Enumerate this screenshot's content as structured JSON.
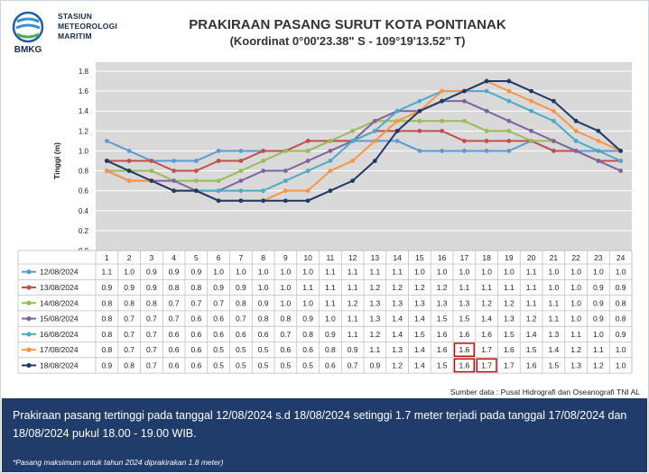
{
  "header": {
    "org_lines": [
      "STASIUN",
      "METEOROLOGI",
      "MARITIM"
    ],
    "logo_text": "BMKG",
    "title": "PRAKIRAAN PASANG SURUT KOTA PONTIANAK",
    "subtitle": "(Koordinat 0°00'23.38\" S - 109°19'13.52\" T)"
  },
  "source": "Sumber data : Pusat Hidrografi dan Oseanografi TNI AL",
  "footer": {
    "text": "Prakiraan pasang tertinggi pada tanggal 12/08/2024 s.d 18/08/2024 setinggi 1.7 meter terjadi pada tanggal 17/08/2024 dan 18/08/2024 pukul 18.00 - 19.00 WIB.",
    "note": "*Pasang maksimum untuk tahun 2024 diprakirakan 1.8 meter)"
  },
  "colors": {
    "footer_bg": "#1f3c6b",
    "plot_bg": "#d9d9d9",
    "highlight_box": "#c00000"
  },
  "chart_data": {
    "type": "line",
    "ylabel": "Tinggi (m)",
    "xlabel": "",
    "ylim": [
      0,
      1.8
    ],
    "yticks": [
      "0.0",
      "0.2",
      "0.4",
      "0.6",
      "0.8",
      "1.0",
      "1.2",
      "1.4",
      "1.6",
      "1.8"
    ],
    "categories": [
      "1",
      "2",
      "3",
      "4",
      "5",
      "6",
      "7",
      "8",
      "9",
      "10",
      "11",
      "12",
      "13",
      "14",
      "15",
      "16",
      "17",
      "18",
      "19",
      "20",
      "21",
      "22",
      "23",
      "24"
    ],
    "grid": true,
    "legend_position": "data-table",
    "series": [
      {
        "name": "12/08/2024",
        "color": "#5b9bd5",
        "values": [
          1.1,
          1.0,
          0.9,
          0.9,
          0.9,
          1.0,
          1.0,
          1.0,
          1.0,
          1.0,
          1.1,
          1.1,
          1.1,
          1.1,
          1.0,
          1.0,
          1.0,
          1.0,
          1.0,
          1.1,
          1.0,
          1.0,
          1.0,
          1.0
        ],
        "highlight": []
      },
      {
        "name": "13/08/2024",
        "color": "#c0504d",
        "values": [
          0.9,
          0.9,
          0.9,
          0.8,
          0.8,
          0.9,
          0.9,
          1.0,
          1.0,
          1.1,
          1.1,
          1.1,
          1.2,
          1.2,
          1.2,
          1.2,
          1.1,
          1.1,
          1.1,
          1.1,
          1.0,
          1.0,
          0.9,
          0.9
        ],
        "highlight": []
      },
      {
        "name": "14/08/2024",
        "color": "#9bbb59",
        "values": [
          0.8,
          0.8,
          0.8,
          0.7,
          0.7,
          0.7,
          0.8,
          0.9,
          1.0,
          1.0,
          1.1,
          1.2,
          1.3,
          1.3,
          1.3,
          1.3,
          1.3,
          1.2,
          1.2,
          1.1,
          1.1,
          1.0,
          0.9,
          0.8
        ],
        "highlight": []
      },
      {
        "name": "15/08/2024",
        "color": "#8064a2",
        "values": [
          0.8,
          0.7,
          0.7,
          0.7,
          0.6,
          0.6,
          0.7,
          0.8,
          0.8,
          0.9,
          1.0,
          1.1,
          1.3,
          1.4,
          1.4,
          1.5,
          1.5,
          1.4,
          1.3,
          1.2,
          1.1,
          1.0,
          0.9,
          0.8
        ],
        "highlight": []
      },
      {
        "name": "16/08/2024",
        "color": "#4bacc6",
        "values": [
          0.8,
          0.7,
          0.7,
          0.6,
          0.6,
          0.6,
          0.6,
          0.6,
          0.7,
          0.8,
          0.9,
          1.1,
          1.2,
          1.4,
          1.5,
          1.6,
          1.6,
          1.6,
          1.5,
          1.4,
          1.3,
          1.1,
          1.0,
          0.9
        ],
        "highlight": []
      },
      {
        "name": "17/08/2024",
        "color": "#f79646",
        "values": [
          0.8,
          0.7,
          0.7,
          0.6,
          0.6,
          0.5,
          0.5,
          0.5,
          0.6,
          0.6,
          0.8,
          0.9,
          1.1,
          1.3,
          1.4,
          1.6,
          1.6,
          1.7,
          1.6,
          1.5,
          1.4,
          1.2,
          1.1,
          1.0
        ],
        "highlight": [
          17
        ]
      },
      {
        "name": "18/08/2024",
        "color": "#1f3864",
        "values": [
          0.9,
          0.8,
          0.7,
          0.6,
          0.6,
          0.5,
          0.5,
          0.5,
          0.5,
          0.5,
          0.6,
          0.7,
          0.9,
          1.2,
          1.4,
          1.5,
          1.6,
          1.7,
          1.7,
          1.6,
          1.5,
          1.3,
          1.2,
          1.0
        ],
        "highlight": [
          17,
          18
        ]
      }
    ]
  }
}
